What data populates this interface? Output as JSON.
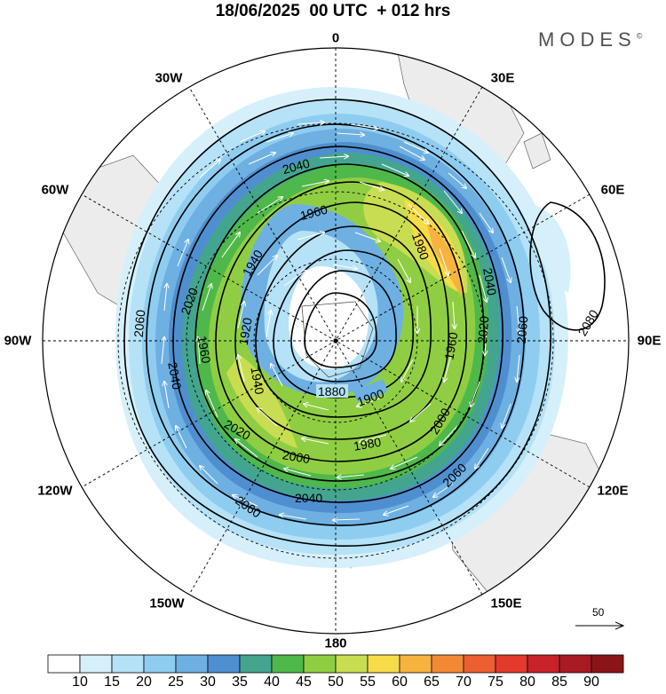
{
  "title": "18/06/2025  00 UTC  + 012 hrs",
  "brand": "MODES",
  "brand_mark": "©",
  "meridian_labels": [
    "0",
    "30E",
    "60E",
    "90E",
    "120E",
    "150E",
    "180",
    "150W",
    "120W",
    "90W",
    "60W",
    "30W"
  ],
  "contour_labels": [
    "1880",
    "1900",
    "1920",
    "1940",
    "1960",
    "1980",
    "2000",
    "2020",
    "2040",
    "2060",
    "2080"
  ],
  "colorbar": {
    "ticks": [
      "10",
      "15",
      "20",
      "25",
      "30",
      "35",
      "40",
      "45",
      "50",
      "55",
      "60",
      "65",
      "70",
      "75",
      "80",
      "85",
      "90"
    ],
    "colors": [
      "#ffffff",
      "#d6f0fb",
      "#b5e2f7",
      "#8fcdf0",
      "#6eb0e2",
      "#4f8fcf",
      "#44a58f",
      "#4fb84a",
      "#8fce43",
      "#c9dd52",
      "#f7dc4a",
      "#f7b340",
      "#f28a35",
      "#ec5f30",
      "#e23a2c",
      "#c8222a",
      "#a81b22",
      "#8a1518"
    ]
  },
  "reference_vector": "50"
}
